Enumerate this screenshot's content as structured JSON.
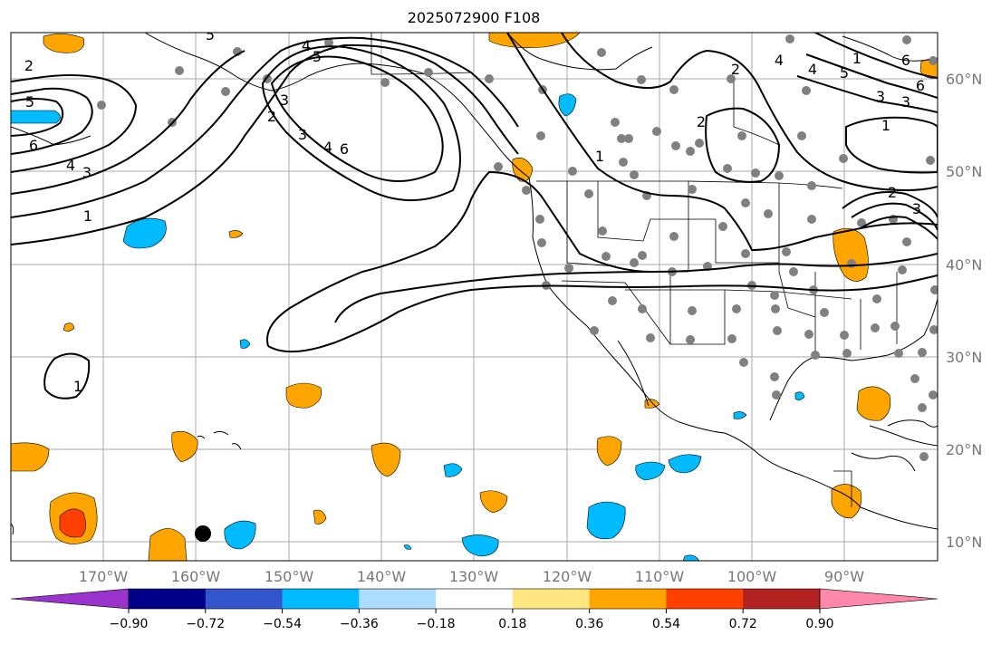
{
  "title": "2025072900 F108",
  "lat_labels": [
    "60°N",
    "50°N",
    "40°N",
    "30°N",
    "20°N",
    "10°N"
  ],
  "lon_labels": [
    "170°W",
    "160°W",
    "150°W",
    "140°W",
    "130°W",
    "120°W",
    "110°W",
    "100°W",
    "90°W"
  ],
  "contour_labels": [
    "2",
    "5",
    "6",
    "4",
    "3",
    "1",
    "4",
    "5",
    "3",
    "2",
    "1",
    "5",
    "4",
    "3",
    "6",
    "4",
    "6",
    "2",
    "1",
    "2",
    "3",
    "4",
    "5",
    "6",
    "3",
    "1",
    "2",
    "3",
    "1"
  ],
  "colorbar": {
    "ticks": [
      "−0.90",
      "−0.72",
      "−0.54",
      "−0.36",
      "−0.18",
      "0.18",
      "0.36",
      "0.54",
      "0.72",
      "0.90"
    ],
    "colors": [
      "#9933cc",
      "#000088",
      "#3355cc",
      "#00bbff",
      "#aaddff",
      "#ffffff",
      "#ffe680",
      "#ffa500",
      "#ff4000",
      "#b22222",
      "#ff88aa"
    ]
  },
  "colors": {
    "positive_fill": "#ffa500",
    "strong_positive_fill": "#ff4000",
    "negative_fill": "#00bbff",
    "station_dot": "#808080",
    "contour": "#000000"
  }
}
